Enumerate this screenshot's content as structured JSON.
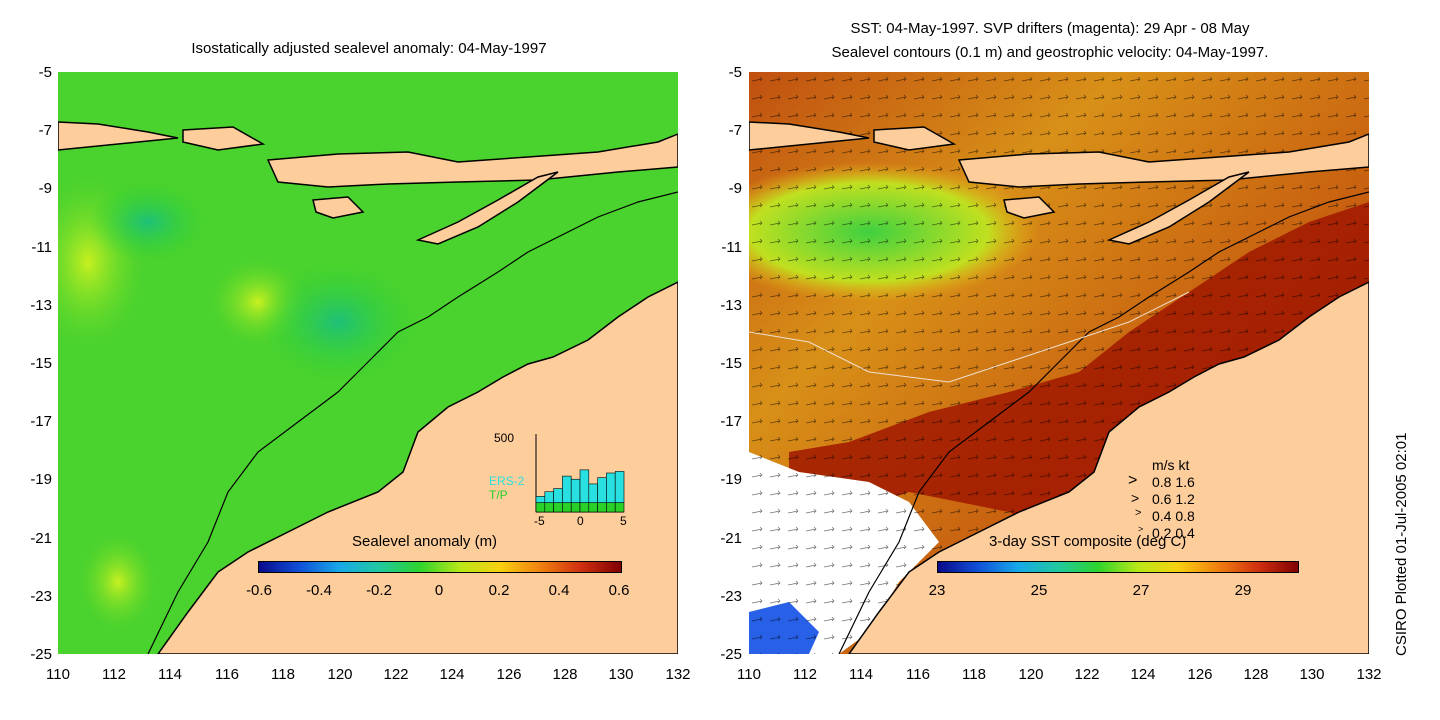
{
  "left_panel": {
    "title": "Isostatically adjusted sealevel anomaly: 04-May-1997",
    "y_ticks": [
      "-5",
      "-7",
      "-9",
      "-11",
      "-13",
      "-15",
      "-17",
      "-19",
      "-21",
      "-23",
      "-25"
    ],
    "x_ticks": [
      "110",
      "112",
      "114",
      "116",
      "118",
      "120",
      "122",
      "124",
      "126",
      "128",
      "130",
      "132"
    ],
    "colorbar_label": "Sealevel anomaly (m)",
    "colorbar_ticks": [
      "-0.6",
      "-0.4",
      "-0.2",
      "0",
      "0.2",
      "0.4",
      "0.6"
    ],
    "inset": {
      "max_label": "500",
      "series": [
        "ERS-2",
        "T/P"
      ],
      "x_ticks": [
        "-5",
        "0",
        "5"
      ],
      "ers2_counts": [
        40,
        70,
        90,
        170,
        150,
        210,
        120,
        160,
        190,
        200
      ],
      "tp_counts": [
        60,
        60,
        60,
        60,
        60,
        60,
        60,
        60,
        60,
        60
      ]
    }
  },
  "right_panel": {
    "title_line1": "SST: 04-May-1997. SVP drifters (magenta): 29 Apr - 08 May",
    "title_line2": "Sealevel contours (0.1 m) and geostrophic velocity: 04-May-1997.",
    "y_ticks": [
      "-5",
      "-7",
      "-9",
      "-11",
      "-13",
      "-15",
      "-17",
      "-19",
      "-21",
      "-23",
      "-25"
    ],
    "x_ticks": [
      "110",
      "112",
      "114",
      "116",
      "118",
      "120",
      "122",
      "124",
      "126",
      "128",
      "130",
      "132"
    ],
    "colorbar_label": "3-day SST composite (deg C)",
    "colorbar_ticks": [
      "23",
      "25",
      "27",
      "29"
    ],
    "velocity_legend": {
      "header": "m/s  kt",
      "rows": [
        "0.8  1.6",
        "0.6  1.2",
        "0.4  0.8",
        "0.2  0.4"
      ]
    }
  },
  "credit": "CSIRO Plotted 01-Jul-2005 02:01",
  "colors": {
    "land": "#fecd9c",
    "coast": "#000000",
    "ocean_green": "#2ed42e",
    "sst_warm": "#a01800"
  }
}
